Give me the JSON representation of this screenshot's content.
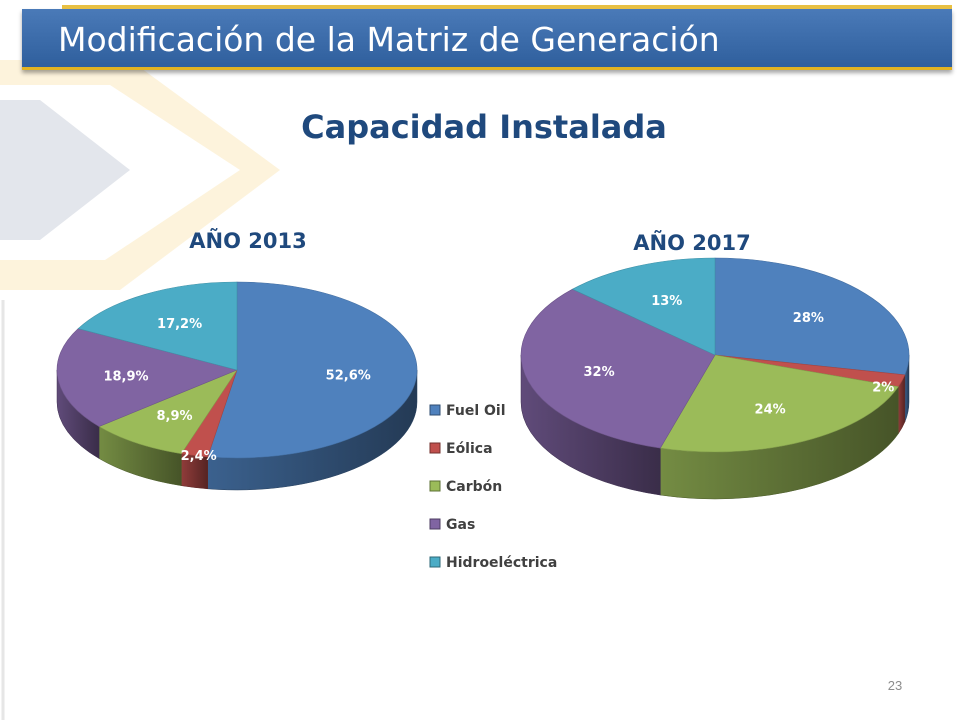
{
  "slide": {
    "title": "Modificación de la Matriz de Generación",
    "subtitle": "Capacidad Instalada",
    "page_number": "23"
  },
  "chart_data": [
    {
      "type": "pie",
      "title": "AÑO 2013",
      "categories": [
        "Fuel Oil",
        "Eólica",
        "Carbón",
        "Gas",
        "Hidroeléctrica"
      ],
      "values": [
        52.6,
        2.4,
        8.9,
        18.9,
        17.2
      ],
      "data_labels": [
        "52,6%",
        "2,4%",
        "8,9%",
        "18,9%",
        "17,2%"
      ],
      "legend": "right"
    },
    {
      "type": "pie",
      "title": "AÑO 2017",
      "categories": [
        "Fuel Oil",
        "Eólica",
        "Carbón",
        "Gas",
        "Hidroeléctrica"
      ],
      "values": [
        28,
        2,
        24,
        32,
        13
      ],
      "data_labels": [
        "28%",
        "2%",
        "24%",
        "32%",
        "13%"
      ],
      "legend": "none"
    }
  ],
  "colors": {
    "Fuel Oil": "#4f81bd",
    "Eólica": "#c0504d",
    "Carbón": "#9bbb59",
    "Gas": "#8064a2",
    "Hidroeléctrica": "#4bacc6",
    "title_bar": "#3a6aa8",
    "accent_gold": "#e2b322",
    "heading_text": "#1f497d",
    "label_text": "#ffffff"
  }
}
